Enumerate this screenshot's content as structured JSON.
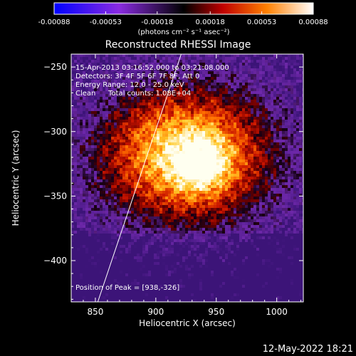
{
  "chart_data": {
    "type": "heatmap",
    "title": "Reconstructed RHESSI Image",
    "xlabel": "Heliocentric X (arcsec)",
    "ylabel": "Heliocentric Y (arcsec)",
    "xlim": [
      830,
      1022
    ],
    "ylim": [
      -432,
      -240
    ],
    "x_ticks": [
      850,
      900,
      950,
      1000
    ],
    "y_ticks": [
      -250,
      -300,
      -350,
      -400
    ],
    "colorbar": {
      "ticks": [
        "-0.00088",
        "-0.00053",
        "-0.00018",
        "0.00018",
        "0.00053",
        "0.00088"
      ],
      "tick_values": [
        -0.00088,
        -0.00053,
        -0.00018,
        0.00018,
        0.00053,
        0.00088
      ],
      "range": [
        -0.00088,
        0.00088
      ],
      "units": "(photons cm⁻² s⁻¹ asec⁻²)"
    },
    "annotations": {
      "time_range": "15-Apr-2013 03:16:52.000 to 03:21:08.000",
      "detectors": "Detectors: 3F 4F 5F 6F 7F 8F, Att 0",
      "energy": "Energy Range: 12.0 - 25.0 keV",
      "method": "Clean",
      "counts": "Total counts: 1.08E+04",
      "peak": "Position of Peak = [938,-326]"
    },
    "peak": [
      938,
      -326
    ],
    "limb_line": [
      [
        852,
        -432
      ],
      [
        921,
        -240
      ]
    ]
  },
  "footer": {
    "timestamp": "12-May-2022 18:21"
  }
}
